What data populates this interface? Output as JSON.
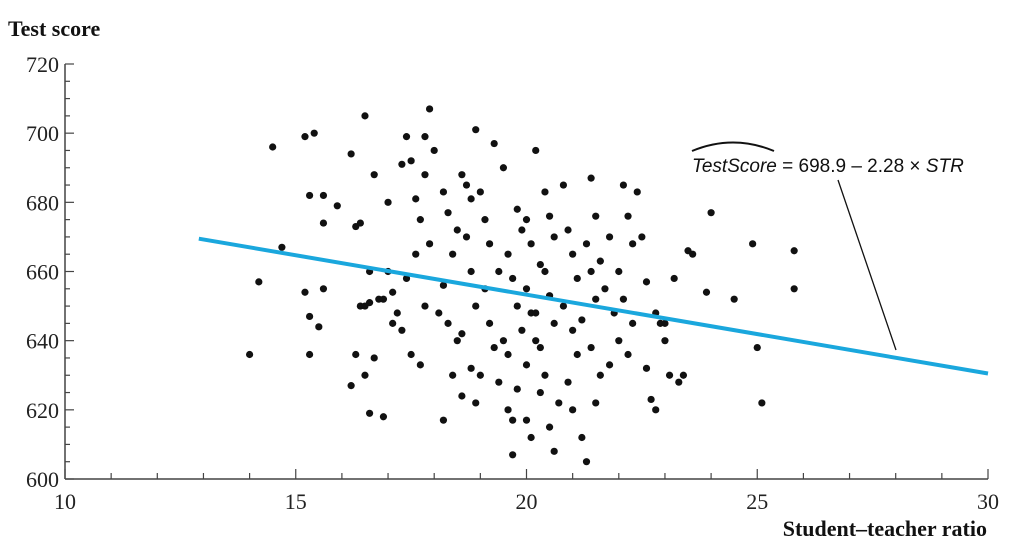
{
  "chart_data": {
    "type": "scatter",
    "ylabel": "Test score",
    "xlabel": "Student–teacher ratio",
    "xlim": [
      10,
      30
    ],
    "ylim": [
      600,
      720
    ],
    "x_ticks": [
      10,
      15,
      20,
      25,
      30
    ],
    "y_ticks": [
      600,
      620,
      640,
      660,
      680,
      700,
      720
    ],
    "grid": false,
    "colors": {
      "points": "#111111",
      "regression_line": "#1aa7dd",
      "axis": "#444444"
    },
    "regression": {
      "intercept": 698.9,
      "slope": -2.28,
      "x_range": [
        12.9,
        30
      ],
      "equation": {
        "lhs": "TestScore",
        "rhs_prefix": " = 698.9 – 2.28 × ",
        "rhs_var": "STR"
      }
    },
    "points": [
      [
        14.0,
        636
      ],
      [
        14.2,
        657
      ],
      [
        14.5,
        696
      ],
      [
        14.7,
        667
      ],
      [
        15.2,
        699
      ],
      [
        15.4,
        700
      ],
      [
        15.3,
        682
      ],
      [
        15.6,
        682
      ],
      [
        15.2,
        654
      ],
      [
        15.3,
        647
      ],
      [
        15.5,
        644
      ],
      [
        15.6,
        655
      ],
      [
        15.6,
        674
      ],
      [
        15.3,
        636
      ],
      [
        15.9,
        679
      ],
      [
        16.2,
        694
      ],
      [
        16.3,
        673
      ],
      [
        16.4,
        674
      ],
      [
        16.5,
        705
      ],
      [
        16.6,
        660
      ],
      [
        16.7,
        688
      ],
      [
        16.6,
        651
      ],
      [
        16.8,
        652
      ],
      [
        16.4,
        650
      ],
      [
        16.5,
        650
      ],
      [
        16.6,
        619
      ],
      [
        16.9,
        652
      ],
      [
        16.3,
        636
      ],
      [
        16.2,
        627
      ],
      [
        16.7,
        635
      ],
      [
        16.5,
        630
      ],
      [
        17.0,
        680
      ],
      [
        17.0,
        660
      ],
      [
        17.1,
        645
      ],
      [
        17.2,
        648
      ],
      [
        17.3,
        643
      ],
      [
        17.1,
        654
      ],
      [
        16.9,
        618
      ],
      [
        17.3,
        691
      ],
      [
        17.4,
        699
      ],
      [
        17.5,
        692
      ],
      [
        17.6,
        681
      ],
      [
        17.7,
        675
      ],
      [
        17.8,
        688
      ],
      [
        17.9,
        707
      ],
      [
        17.8,
        699
      ],
      [
        18.0,
        695
      ],
      [
        17.9,
        668
      ],
      [
        17.6,
        665
      ],
      [
        17.4,
        658
      ],
      [
        17.8,
        650
      ],
      [
        17.5,
        636
      ],
      [
        17.7,
        633
      ],
      [
        18.2,
        683
      ],
      [
        18.3,
        677
      ],
      [
        18.5,
        672
      ],
      [
        18.6,
        688
      ],
      [
        18.4,
        665
      ],
      [
        18.2,
        656
      ],
      [
        18.1,
        648
      ],
      [
        18.3,
        645
      ],
      [
        18.5,
        640
      ],
      [
        18.2,
        617
      ],
      [
        18.4,
        630
      ],
      [
        18.6,
        624
      ],
      [
        18.8,
        681
      ],
      [
        18.9,
        701
      ],
      [
        18.7,
        685
      ],
      [
        18.7,
        670
      ],
      [
        18.8,
        660
      ],
      [
        18.9,
        650
      ],
      [
        18.6,
        642
      ],
      [
        18.8,
        632
      ],
      [
        18.9,
        622
      ],
      [
        19.0,
        683
      ],
      [
        19.1,
        675
      ],
      [
        19.2,
        668
      ],
      [
        19.3,
        697
      ],
      [
        19.4,
        660
      ],
      [
        19.1,
        655
      ],
      [
        19.2,
        645
      ],
      [
        19.3,
        638
      ],
      [
        19.0,
        630
      ],
      [
        19.5,
        640
      ],
      [
        19.4,
        628
      ],
      [
        19.6,
        620
      ],
      [
        19.7,
        607
      ],
      [
        19.5,
        690
      ],
      [
        19.8,
        678
      ],
      [
        19.9,
        672
      ],
      [
        19.6,
        665
      ],
      [
        19.7,
        658
      ],
      [
        19.8,
        650
      ],
      [
        19.9,
        643
      ],
      [
        19.6,
        636
      ],
      [
        19.8,
        626
      ],
      [
        19.7,
        617
      ],
      [
        20.0,
        675
      ],
      [
        20.2,
        695
      ],
      [
        20.1,
        668
      ],
      [
        20.3,
        662
      ],
      [
        20.0,
        655
      ],
      [
        20.1,
        648
      ],
      [
        20.2,
        640
      ],
      [
        20.0,
        633
      ],
      [
        20.3,
        625
      ],
      [
        20.0,
        617
      ],
      [
        20.1,
        612
      ],
      [
        20.2,
        648
      ],
      [
        20.4,
        683
      ],
      [
        20.5,
        676
      ],
      [
        20.6,
        670
      ],
      [
        20.4,
        660
      ],
      [
        20.5,
        653
      ],
      [
        20.6,
        645
      ],
      [
        20.3,
        638
      ],
      [
        20.4,
        630
      ],
      [
        20.7,
        622
      ],
      [
        20.5,
        615
      ],
      [
        20.6,
        608
      ],
      [
        20.8,
        685
      ],
      [
        20.9,
        672
      ],
      [
        21.0,
        665
      ],
      [
        21.1,
        658
      ],
      [
        20.8,
        650
      ],
      [
        21.0,
        643
      ],
      [
        21.1,
        636
      ],
      [
        20.9,
        628
      ],
      [
        21.0,
        620
      ],
      [
        21.2,
        612
      ],
      [
        21.3,
        605
      ],
      [
        21.4,
        687
      ],
      [
        21.5,
        676
      ],
      [
        21.3,
        668
      ],
      [
        21.4,
        660
      ],
      [
        21.5,
        652
      ],
      [
        21.2,
        646
      ],
      [
        21.4,
        638
      ],
      [
        21.6,
        630
      ],
      [
        21.5,
        622
      ],
      [
        21.6,
        663
      ],
      [
        21.7,
        655
      ],
      [
        21.8,
        670
      ],
      [
        21.9,
        648
      ],
      [
        22.0,
        640
      ],
      [
        21.8,
        633
      ],
      [
        22.1,
        685
      ],
      [
        22.2,
        676
      ],
      [
        22.3,
        668
      ],
      [
        22.0,
        660
      ],
      [
        22.1,
        652
      ],
      [
        22.3,
        645
      ],
      [
        22.2,
        636
      ],
      [
        22.4,
        683
      ],
      [
        22.5,
        670
      ],
      [
        22.6,
        657
      ],
      [
        22.6,
        632
      ],
      [
        22.8,
        648
      ],
      [
        22.7,
        623
      ],
      [
        22.9,
        645
      ],
      [
        22.8,
        620
      ],
      [
        23.0,
        640
      ],
      [
        23.1,
        630
      ],
      [
        23.2,
        658
      ],
      [
        23.3,
        628
      ],
      [
        23.5,
        666
      ],
      [
        23.6,
        665
      ],
      [
        23.4,
        630
      ],
      [
        23.0,
        645
      ],
      [
        23.9,
        654
      ],
      [
        24.0,
        677
      ],
      [
        24.5,
        652
      ],
      [
        24.9,
        668
      ],
      [
        25.0,
        638
      ],
      [
        25.1,
        622
      ],
      [
        25.8,
        666
      ],
      [
        25.8,
        655
      ]
    ]
  }
}
